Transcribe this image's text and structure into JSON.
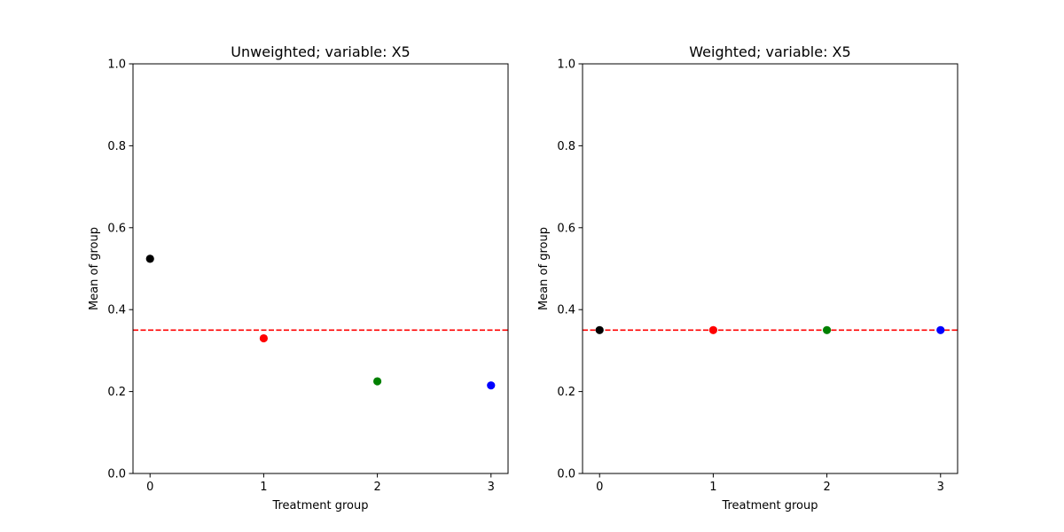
{
  "chart_data": [
    {
      "type": "scatter",
      "title": "Unweighted; variable: X5",
      "xlabel": "Treatment group",
      "ylabel": "Mean of group",
      "xlim": [
        -0.15,
        3.15
      ],
      "ylim": [
        0.0,
        1.0
      ],
      "xticks": [
        "0",
        "1",
        "2",
        "3"
      ],
      "yticks": [
        "0.0",
        "0.2",
        "0.4",
        "0.6",
        "0.8",
        "1.0"
      ],
      "grid": false,
      "points": [
        {
          "x": 0,
          "y": 0.524,
          "color": "#000000"
        },
        {
          "x": 1,
          "y": 0.33,
          "color": "#ff0000"
        },
        {
          "x": 2,
          "y": 0.225,
          "color": "#008000"
        },
        {
          "x": 3,
          "y": 0.215,
          "color": "#0000ff"
        }
      ],
      "reference_line": {
        "y": 0.35,
        "color": "#ff0000",
        "style": "dashed"
      }
    },
    {
      "type": "scatter",
      "title": "Weighted; variable: X5",
      "xlabel": "Treatment group",
      "ylabel": "Mean of group",
      "xlim": [
        -0.15,
        3.15
      ],
      "ylim": [
        0.0,
        1.0
      ],
      "xticks": [
        "0",
        "1",
        "2",
        "3"
      ],
      "yticks": [
        "0.0",
        "0.2",
        "0.4",
        "0.6",
        "0.8",
        "1.0"
      ],
      "grid": false,
      "points": [
        {
          "x": 0,
          "y": 0.35,
          "color": "#000000"
        },
        {
          "x": 1,
          "y": 0.35,
          "color": "#ff0000"
        },
        {
          "x": 2,
          "y": 0.35,
          "color": "#008000"
        },
        {
          "x": 3,
          "y": 0.35,
          "color": "#0000ff"
        }
      ],
      "reference_line": {
        "y": 0.35,
        "color": "#ff0000",
        "style": "dashed"
      }
    }
  ]
}
